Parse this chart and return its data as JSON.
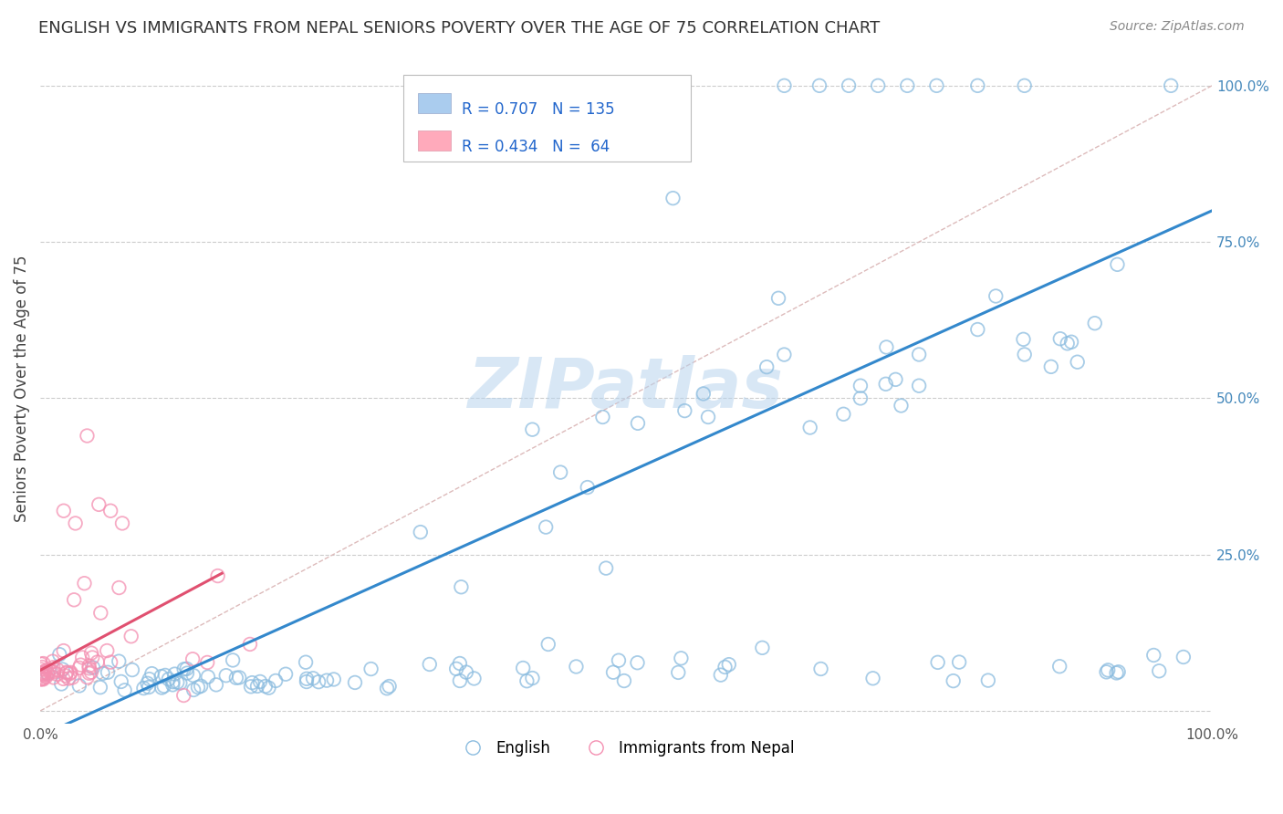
{
  "title": "ENGLISH VS IMMIGRANTS FROM NEPAL SENIORS POVERTY OVER THE AGE OF 75 CORRELATION CHART",
  "source": "Source: ZipAtlas.com",
  "ylabel": "Seniors Poverty Over the Age of 75",
  "bottom_legend": [
    "English",
    "Immigrants from Nepal"
  ],
  "english_color": "#8bbcdf",
  "nepal_color": "#f48fb1",
  "english_line_color": "#3388cc",
  "nepal_line_color": "#e05070",
  "diag_line_color": "#ddbbbb",
  "background_color": "#ffffff",
  "grid_color": "#cccccc",
  "xlim": [
    0.0,
    1.0
  ],
  "ylim": [
    -0.02,
    1.05
  ],
  "right_yticks": [
    0.25,
    0.5,
    0.75,
    1.0
  ],
  "right_yticklabels": [
    "25.0%",
    "50.0%",
    "75.0%",
    "100.0%"
  ],
  "legend_box_color": "#aabbcc",
  "legend_blue_fill": "#aaccee",
  "legend_pink_fill": "#ffaabb",
  "watermark_color": "#b8d4ee"
}
